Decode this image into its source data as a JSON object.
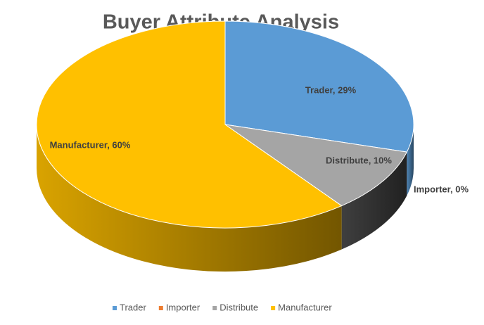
{
  "chart_data": {
    "type": "pie",
    "title": "Buyer Attribute Analysis",
    "categories": [
      "Trader",
      "Importer",
      "Distribute",
      "Manufacturer"
    ],
    "values": [
      29,
      0,
      10,
      60
    ],
    "value_labels": [
      "Trader, 29%",
      "Importer, 0%",
      "Distribute, 10%",
      "Manufacturer, 60%"
    ],
    "colors": [
      "#5b9bd5",
      "#ed7d31",
      "#a5a5a5",
      "#ffc000"
    ],
    "legend": "bottom"
  }
}
